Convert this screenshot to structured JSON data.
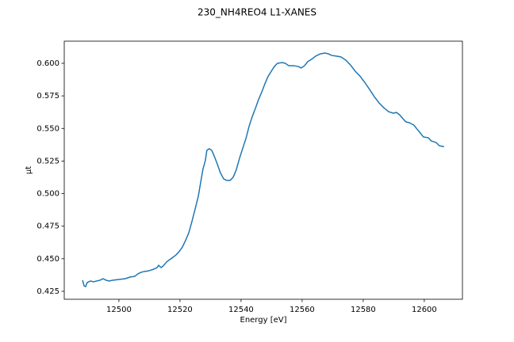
{
  "chart_data": {
    "type": "line",
    "title": "230_NH4REO4 L1-XANES",
    "x_label": "Energy [eV]",
    "y_label": "μt",
    "xlim": [
      12482.1,
      12612.5
    ],
    "ylim": [
      0.4189,
      0.617
    ],
    "xticks": [
      12500,
      12520,
      12540,
      12560,
      12580,
      12600
    ],
    "yticks": [
      0.425,
      {
        "value": 0.45,
        "label": "0.450"
      },
      0.475,
      {
        "value": 0.5,
        "label": "0.500"
      },
      0.525,
      {
        "value": 0.55,
        "label": "0.550"
      },
      0.575,
      {
        "value": 0.6,
        "label": "0.600"
      }
    ],
    "grid": false,
    "series": [
      {
        "color": "#1f77b4",
        "x": [
          12488.1,
          12488.6,
          12489.1,
          12489.6,
          12490.7,
          12491.7,
          12492.7,
          12493.8,
          12494.8,
          12495.8,
          12496.9,
          12497.9,
          12500.0,
          12502.1,
          12503.6,
          12505.2,
          12506.2,
          12507.3,
          12508.3,
          12509.9,
          12511.4,
          12512.5,
          12513.0,
          12513.8,
          12514.5,
          12515.6,
          12516.6,
          12517.7,
          12518.7,
          12519.7,
          12520.8,
          12521.8,
          12522.9,
          12523.9,
          12524.9,
          12526.0,
          12526.7,
          12527.5,
          12528.3,
          12528.8,
          12529.6,
          12530.4,
          12531.2,
          12532.2,
          12533.2,
          12534.3,
          12535.3,
          12536.4,
          12537.4,
          12538.4,
          12539.5,
          12540.5,
          12541.6,
          12542.6,
          12543.6,
          12544.7,
          12545.7,
          12546.7,
          12547.8,
          12548.8,
          12549.9,
          12550.9,
          12551.9,
          12553.5,
          12554.5,
          12555.6,
          12557.1,
          12558.7,
          12559.7,
          12560.8,
          12561.8,
          12563.4,
          12564.4,
          12566.0,
          12567.5,
          12568.6,
          12569.6,
          12571.2,
          12572.7,
          12574.3,
          12575.8,
          12577.4,
          12578.9,
          12580.5,
          12582.1,
          12583.6,
          12585.2,
          12586.7,
          12588.3,
          12589.9,
          12590.9,
          12591.9,
          12593.0,
          12594.0,
          12595.1,
          12596.6,
          12597.6,
          12598.7,
          12599.7,
          12601.3,
          12602.3,
          12603.9,
          12604.9,
          12606.0,
          12606.5
        ],
        "values": [
          0.4335,
          0.4292,
          0.4286,
          0.4317,
          0.4329,
          0.4323,
          0.4329,
          0.4335,
          0.4347,
          0.4335,
          0.4329,
          0.4335,
          0.4341,
          0.4347,
          0.4359,
          0.4365,
          0.4384,
          0.4396,
          0.4402,
          0.4408,
          0.442,
          0.4432,
          0.445,
          0.4432,
          0.4444,
          0.4475,
          0.4493,
          0.4511,
          0.4529,
          0.4554,
          0.459,
          0.4639,
          0.47,
          0.4785,
          0.4876,
          0.4979,
          0.5076,
          0.5186,
          0.5253,
          0.5332,
          0.5344,
          0.5332,
          0.5289,
          0.5228,
          0.5161,
          0.5113,
          0.5101,
          0.5101,
          0.5125,
          0.518,
          0.5271,
          0.5344,
          0.5423,
          0.5514,
          0.5587,
          0.5654,
          0.572,
          0.5775,
          0.5842,
          0.5897,
          0.5939,
          0.5976,
          0.6,
          0.6006,
          0.6,
          0.5982,
          0.5982,
          0.5976,
          0.5964,
          0.5982,
          0.6012,
          0.6036,
          0.6055,
          0.6073,
          0.6079,
          0.6073,
          0.6061,
          0.6055,
          0.6049,
          0.6024,
          0.5988,
          0.5939,
          0.5903,
          0.5854,
          0.5799,
          0.5745,
          0.5696,
          0.566,
          0.5629,
          0.5617,
          0.5623,
          0.5605,
          0.5575,
          0.555,
          0.5544,
          0.5526,
          0.5496,
          0.5465,
          0.5435,
          0.5429,
          0.5404,
          0.5392,
          0.5368,
          0.5362,
          0.5362
        ]
      }
    ]
  }
}
